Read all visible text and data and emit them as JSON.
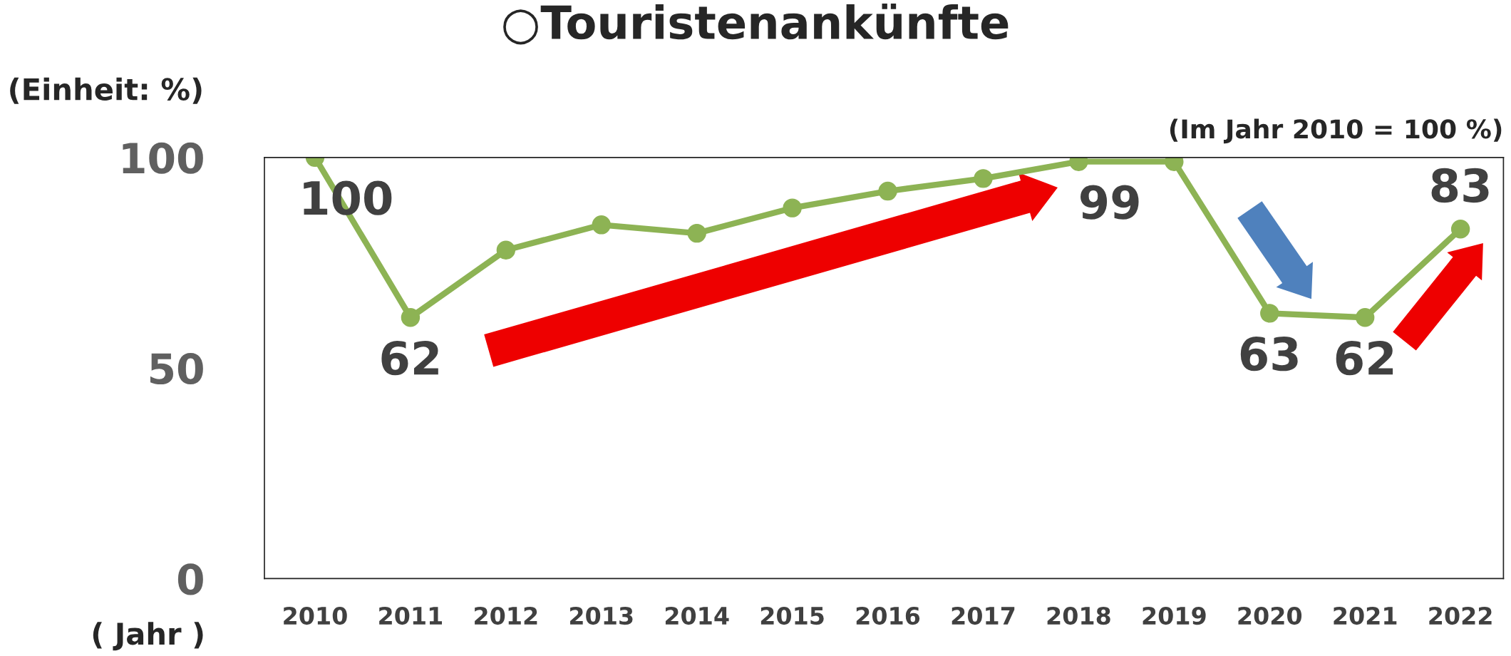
{
  "chart_data": {
    "type": "line",
    "title": "○Touristenankünfte",
    "ylabel": "(Einheit: %)",
    "xlabel": "( Jahr )",
    "annotations": [
      "(Im Jahr 2010 = 100 %)"
    ],
    "categories": [
      "2010",
      "2011",
      "2012",
      "2013",
      "2014",
      "2015",
      "2016",
      "2017",
      "2018",
      "2019",
      "2020",
      "2021",
      "2022"
    ],
    "series": [
      {
        "color": "#8db354",
        "values": [
          100,
          62,
          78,
          84,
          82,
          88,
          92,
          95,
          99,
          99,
          63,
          62,
          83
        ],
        "value_labels": [
          "100",
          "62",
          null,
          null,
          null,
          null,
          null,
          null,
          "99",
          null,
          "63",
          "62",
          "83"
        ]
      }
    ],
    "ylim": [
      0,
      100
    ],
    "yticks": [
      0,
      50,
      100
    ],
    "grid": false,
    "marker": "circle",
    "line_style": "solid"
  }
}
